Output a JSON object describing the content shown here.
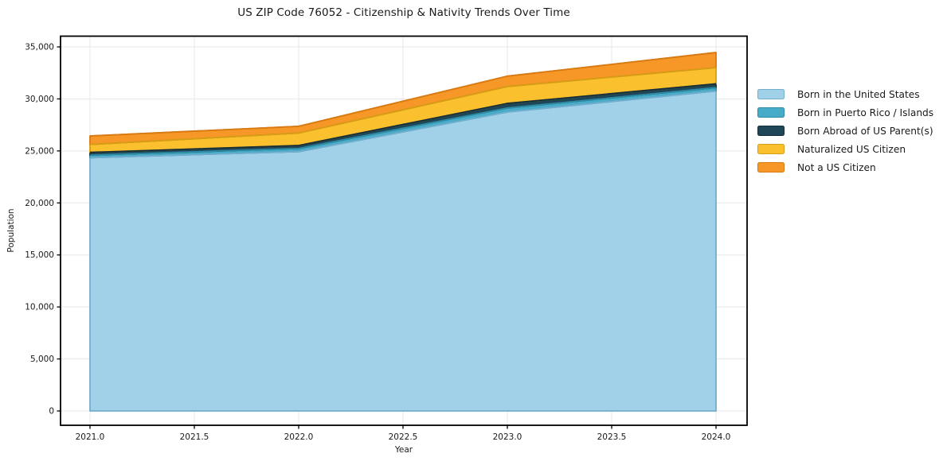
{
  "chart_data": {
    "type": "area",
    "stacked": true,
    "title": "US ZIP Code 76052 - Citizenship & Nativity Trends Over Time",
    "xlabel": "Year",
    "ylabel": "Population",
    "grid": true,
    "legend_position": "right-outside",
    "x": [
      2021,
      2022,
      2023,
      2024
    ],
    "series": [
      {
        "name": "Born in the United States",
        "values": [
          24350,
          24930,
          28740,
          30760
        ],
        "fill": "#A1D1E8",
        "edge": "#72AFCF"
      },
      {
        "name": "Born in Puerto Rico / Islands",
        "values": [
          250,
          310,
          390,
          330
        ],
        "fill": "#46ACC8",
        "edge": "#2E8BA5"
      },
      {
        "name": "Born Abroad of US Parent(s)",
        "values": [
          260,
          280,
          440,
          360
        ],
        "fill": "#1F4656",
        "edge": "#132E3A"
      },
      {
        "name": "Naturalized US Citizen",
        "values": [
          760,
          1200,
          1620,
          1560
        ],
        "fill": "#FBC02D",
        "edge": "#D69E15"
      },
      {
        "name": "Not a US Citizen",
        "values": [
          820,
          650,
          1000,
          1450
        ],
        "fill": "#F79727",
        "edge": "#D77A12"
      }
    ],
    "totals": [
      26440,
      27370,
      32190,
      34460
    ],
    "xticks": {
      "values": [
        2021,
        2021.5,
        2022,
        2022.5,
        2023,
        2023.5,
        2024
      ],
      "labels": [
        "2021.0",
        "2021.5",
        "2022.0",
        "2022.5",
        "2023.0",
        "2023.5",
        "2024.0"
      ]
    },
    "yticks": {
      "values": [
        0,
        5000,
        10000,
        15000,
        20000,
        25000,
        30000,
        35000
      ],
      "labels": [
        "0",
        "5,000",
        "10,000",
        "15,000",
        "20,000",
        "25,000",
        "30,000",
        "35,000"
      ]
    },
    "xlim": [
      2020.86,
      2024.15
    ],
    "ylim": [
      -1530,
      35920
    ],
    "colors": {
      "grid": "#E7E7E7",
      "spine": "#000000",
      "tick_label": "#1a1a1a",
      "background": "#ffffff"
    }
  }
}
